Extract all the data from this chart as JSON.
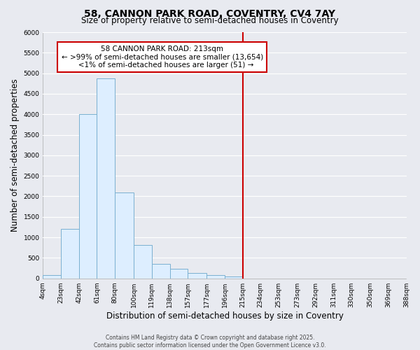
{
  "title": "58, CANNON PARK ROAD, COVENTRY, CV4 7AY",
  "subtitle": "Size of property relative to semi-detached houses in Coventry",
  "xlabel": "Distribution of semi-detached houses by size in Coventry",
  "ylabel": "Number of semi-detached properties",
  "bin_labels": [
    "4sqm",
    "23sqm",
    "42sqm",
    "61sqm",
    "80sqm",
    "100sqm",
    "119sqm",
    "138sqm",
    "157sqm",
    "177sqm",
    "196sqm",
    "215sqm",
    "234sqm",
    "253sqm",
    "273sqm",
    "292sqm",
    "311sqm",
    "330sqm",
    "350sqm",
    "369sqm",
    "388sqm"
  ],
  "bin_edges": [
    4,
    23,
    42,
    61,
    80,
    100,
    119,
    138,
    157,
    177,
    196,
    215,
    234,
    253,
    273,
    292,
    311,
    330,
    350,
    369,
    388
  ],
  "bar_heights": [
    75,
    1200,
    4010,
    4870,
    2100,
    810,
    360,
    230,
    130,
    75,
    50,
    0,
    0,
    0,
    0,
    0,
    0,
    0,
    0,
    0
  ],
  "bar_color": "#ddeeff",
  "bar_edge_color": "#7ab0d0",
  "vline_x": 215,
  "vline_color": "#cc0000",
  "ylim": [
    0,
    6000
  ],
  "yticks": [
    0,
    500,
    1000,
    1500,
    2000,
    2500,
    3000,
    3500,
    4000,
    4500,
    5000,
    5500,
    6000
  ],
  "annot_line1": "58 CANNON PARK ROAD: 213sqm",
  "annot_line2": "← >99% of semi-detached houses are smaller (13,654)",
  "annot_line3": "   <1% of semi-detached houses are larger (51) →",
  "footer_line1": "Contains HM Land Registry data © Crown copyright and database right 2025.",
  "footer_line2": "Contains public sector information licensed under the Open Government Licence v3.0.",
  "bg_color": "#e8eaf0",
  "plot_bg_color": "#e8eaf0",
  "grid_color": "#ffffff",
  "title_fontsize": 10,
  "subtitle_fontsize": 8.5,
  "axis_label_fontsize": 8.5,
  "tick_fontsize": 6.5,
  "annot_fontsize": 7.5,
  "footer_fontsize": 5.5
}
